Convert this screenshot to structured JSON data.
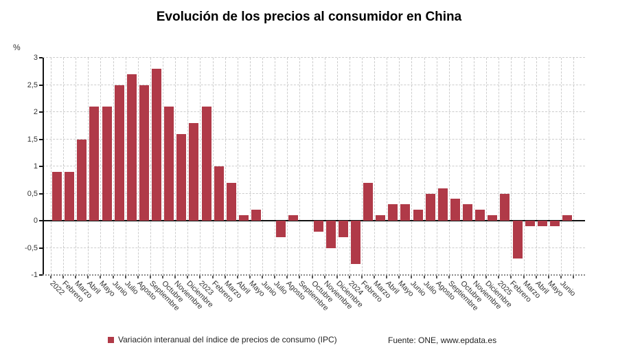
{
  "title": "Evolución de los precios al consumidor en China",
  "y_axis_unit": "%",
  "legend": {
    "series_label": "Variación interanual del índice de precios de consumo (IPC)",
    "source_label": "Fuente: ONE, www.epdata.es"
  },
  "colors": {
    "bar": "#B03A48",
    "axis": "#111111",
    "grid": "#cccccc",
    "label": "#333333"
  },
  "chart_data": {
    "type": "bar",
    "title": "Evolución de los precios al consumidor en China",
    "xlabel": "",
    "ylabel": "%",
    "ylim": [
      -1,
      3
    ],
    "grid": true,
    "legend_position": "bottom",
    "x_label_rotation": 45,
    "series_name": "Variación interanual del índice de precios de consumo (IPC)",
    "categories": [
      "2022",
      "Febrero",
      "Marzo",
      "Abril",
      "Mayo",
      "Junio",
      "Julio",
      "Agosto",
      "Septiembre",
      "Octubre",
      "Noviembre",
      "Diciembre",
      "2023",
      "Febrero",
      "Marzo",
      "Abril",
      "Mayo",
      "Junio",
      "Julio",
      "Agosto",
      "Septiembre",
      "Octubre",
      "Noviembre",
      "Diciembre",
      "2024",
      "Febrero",
      "Marzo",
      "Abril",
      "Mayo",
      "Junio",
      "Julio",
      "Agosto",
      "Septiembre",
      "Octubre",
      "Noviembre",
      "Diciembre",
      "2025",
      "Febrero",
      "Marzo",
      "Abril",
      "Mayo",
      "Junio"
    ],
    "values": [
      0.9,
      0.9,
      1.5,
      2.1,
      2.1,
      2.5,
      2.7,
      2.5,
      2.8,
      2.1,
      1.6,
      1.8,
      2.1,
      1.0,
      0.7,
      0.1,
      0.2,
      0.0,
      -0.3,
      0.1,
      0.0,
      -0.2,
      -0.5,
      -0.3,
      -0.8,
      0.7,
      0.1,
      0.3,
      0.3,
      0.2,
      0.5,
      0.6,
      0.4,
      0.3,
      0.2,
      0.1,
      0.5,
      -0.7,
      -0.1,
      -0.1,
      -0.1,
      0.1
    ],
    "ytick_values": [
      3,
      2.5,
      2,
      1.5,
      1,
      0.5,
      0,
      -0.5,
      -1
    ],
    "ytick_labels": [
      "3",
      "2,5",
      "2",
      "1,5",
      "1",
      "0,5",
      "0",
      "-0,5",
      "-1"
    ]
  }
}
